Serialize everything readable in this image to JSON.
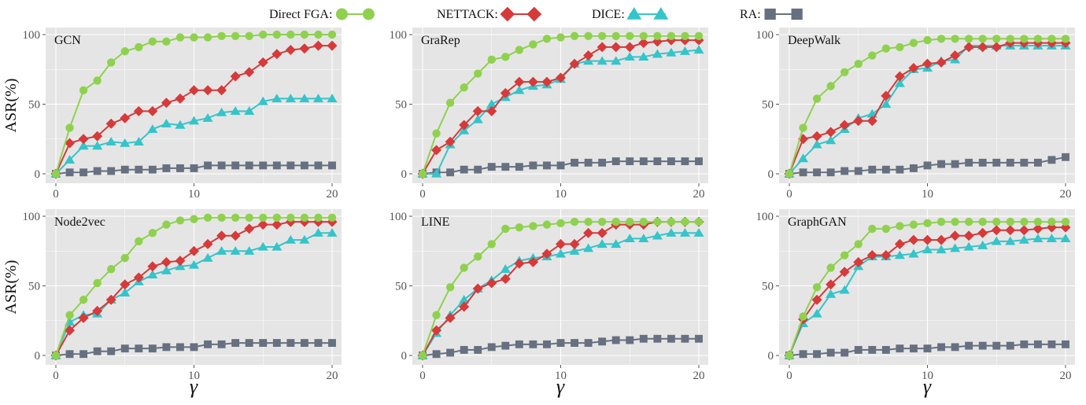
{
  "legend": {
    "position": "top",
    "items": [
      {
        "label": "Direct FGA:",
        "series": "Direct FGA"
      },
      {
        "label": "NETTACK:",
        "series": "NETTACK"
      },
      {
        "label": "DICE:",
        "series": "DICE"
      },
      {
        "label": "RA:",
        "series": "RA"
      }
    ]
  },
  "styles": {
    "panel_bg": "#e5e5e5",
    "grid": "#ffffff",
    "series": {
      "Direct FGA": {
        "color": "#8fd14f",
        "marker": "circle"
      },
      "NETTACK": {
        "color": "#d63a3a",
        "marker": "diamond"
      },
      "DICE": {
        "color": "#35c4c9",
        "marker": "triangle"
      },
      "RA": {
        "color": "#667080",
        "marker": "square"
      }
    }
  },
  "chart_data": [
    {
      "type": "line",
      "title": "GCN",
      "xlabel": "",
      "ylabel": "ASR(%)",
      "xlim": [
        0,
        20
      ],
      "ylim": [
        0,
        100
      ],
      "xticks": [
        0,
        10,
        20
      ],
      "yticks": [
        0,
        50,
        100
      ],
      "grid": true,
      "x": [
        0,
        1,
        2,
        3,
        4,
        5,
        6,
        7,
        8,
        9,
        10,
        11,
        12,
        13,
        14,
        15,
        16,
        17,
        18,
        19,
        20
      ],
      "series": [
        {
          "name": "Direct FGA",
          "values": [
            0,
            33,
            60,
            67,
            80,
            88,
            91,
            95,
            95,
            98,
            98,
            98,
            99,
            99,
            99,
            100,
            100,
            100,
            100,
            100,
            100
          ]
        },
        {
          "name": "NETTACK",
          "values": [
            0,
            22,
            25,
            27,
            36,
            40,
            45,
            45,
            51,
            54,
            60,
            60,
            60,
            70,
            73,
            80,
            86,
            89,
            90,
            92,
            92
          ]
        },
        {
          "name": "DICE",
          "values": [
            0,
            10,
            20,
            20,
            23,
            22,
            23,
            32,
            36,
            35,
            38,
            40,
            44,
            45,
            45,
            52,
            54,
            54,
            54,
            54,
            54
          ]
        },
        {
          "name": "RA",
          "values": [
            0,
            1,
            1,
            2,
            2,
            3,
            3,
            3,
            4,
            4,
            4,
            6,
            6,
            6,
            6,
            6,
            6,
            6,
            6,
            6,
            6
          ]
        }
      ]
    },
    {
      "type": "line",
      "title": "GraRep",
      "xlabel": "",
      "ylabel": "",
      "xlim": [
        0,
        20
      ],
      "ylim": [
        0,
        100
      ],
      "xticks": [
        0,
        10,
        20
      ],
      "yticks": [
        0,
        50,
        100
      ],
      "grid": true,
      "x": [
        0,
        1,
        2,
        3,
        4,
        5,
        6,
        7,
        8,
        9,
        10,
        11,
        12,
        13,
        14,
        15,
        16,
        17,
        18,
        19,
        20
      ],
      "series": [
        {
          "name": "Direct FGA",
          "values": [
            0,
            29,
            51,
            62,
            72,
            82,
            84,
            89,
            93,
            97,
            98,
            99,
            99,
            99,
            99,
            99,
            99,
            99,
            99,
            99,
            99
          ]
        },
        {
          "name": "NETTACK",
          "values": [
            0,
            17,
            23,
            35,
            45,
            45,
            58,
            66,
            66,
            66,
            69,
            79,
            85,
            91,
            91,
            91,
            94,
            95,
            96,
            96,
            96
          ]
        },
        {
          "name": "DICE",
          "values": [
            0,
            0,
            21,
            31,
            39,
            50,
            55,
            60,
            63,
            64,
            68,
            79,
            81,
            81,
            81,
            84,
            84,
            86,
            87,
            88,
            89
          ]
        },
        {
          "name": "RA",
          "values": [
            0,
            1,
            1,
            3,
            3,
            5,
            5,
            5,
            6,
            6,
            6,
            8,
            8,
            8,
            9,
            9,
            9,
            9,
            9,
            9,
            9
          ]
        }
      ]
    },
    {
      "type": "line",
      "title": "DeepWalk",
      "xlabel": "",
      "ylabel": "",
      "xlim": [
        0,
        20
      ],
      "ylim": [
        0,
        100
      ],
      "xticks": [
        0,
        10,
        20
      ],
      "yticks": [
        0,
        50,
        100
      ],
      "grid": true,
      "x": [
        0,
        1,
        2,
        3,
        4,
        5,
        6,
        7,
        8,
        9,
        10,
        11,
        12,
        13,
        14,
        15,
        16,
        17,
        18,
        19,
        20
      ],
      "series": [
        {
          "name": "Direct FGA",
          "values": [
            0,
            33,
            54,
            63,
            73,
            79,
            85,
            90,
            91,
            94,
            96,
            97,
            97,
            97,
            97,
            97,
            97,
            97,
            97,
            97,
            97
          ]
        },
        {
          "name": "NETTACK",
          "values": [
            0,
            25,
            27,
            30,
            35,
            38,
            38,
            56,
            70,
            76,
            79,
            80,
            85,
            91,
            91,
            91,
            94,
            94,
            94,
            94,
            94
          ]
        },
        {
          "name": "DICE",
          "values": [
            0,
            11,
            21,
            24,
            32,
            40,
            43,
            50,
            65,
            75,
            76,
            81,
            82,
            92,
            92,
            92,
            92,
            92,
            92,
            92,
            92
          ]
        },
        {
          "name": "RA",
          "values": [
            0,
            1,
            1,
            1,
            2,
            2,
            3,
            3,
            3,
            4,
            6,
            7,
            7,
            8,
            8,
            8,
            8,
            8,
            8,
            10,
            12
          ]
        }
      ]
    },
    {
      "type": "line",
      "title": "Node2vec",
      "xlabel": "γ",
      "ylabel": "ASR(%)",
      "xlim": [
        0,
        20
      ],
      "ylim": [
        0,
        100
      ],
      "xticks": [
        0,
        10,
        20
      ],
      "yticks": [
        0,
        50,
        100
      ],
      "grid": true,
      "x": [
        0,
        1,
        2,
        3,
        4,
        5,
        6,
        7,
        8,
        9,
        10,
        11,
        12,
        13,
        14,
        15,
        16,
        17,
        18,
        19,
        20
      ],
      "series": [
        {
          "name": "Direct FGA",
          "values": [
            0,
            29,
            40,
            52,
            62,
            70,
            82,
            88,
            94,
            97,
            98,
            99,
            99,
            99,
            99,
            99,
            99,
            99,
            99,
            99,
            99
          ]
        },
        {
          "name": "NETTACK",
          "values": [
            0,
            18,
            27,
            32,
            40,
            51,
            56,
            64,
            67,
            68,
            75,
            80,
            86,
            86,
            91,
            94,
            94,
            96,
            96,
            96,
            96
          ]
        },
        {
          "name": "DICE",
          "values": [
            0,
            24,
            29,
            30,
            40,
            45,
            53,
            58,
            61,
            64,
            65,
            70,
            75,
            75,
            75,
            78,
            78,
            83,
            83,
            88,
            88
          ]
        },
        {
          "name": "RA",
          "values": [
            0,
            1,
            1,
            3,
            3,
            5,
            5,
            5,
            6,
            6,
            6,
            8,
            8,
            9,
            9,
            9,
            9,
            9,
            9,
            9,
            9
          ]
        }
      ]
    },
    {
      "type": "line",
      "title": "LINE",
      "xlabel": "γ",
      "ylabel": "",
      "xlim": [
        0,
        20
      ],
      "ylim": [
        0,
        100
      ],
      "xticks": [
        0,
        10,
        20
      ],
      "yticks": [
        0,
        50,
        100
      ],
      "grid": true,
      "x": [
        0,
        1,
        2,
        3,
        4,
        5,
        6,
        7,
        8,
        9,
        10,
        11,
        12,
        13,
        14,
        15,
        16,
        17,
        18,
        19,
        20
      ],
      "series": [
        {
          "name": "Direct FGA",
          "values": [
            0,
            29,
            49,
            63,
            71,
            80,
            91,
            92,
            93,
            94,
            95,
            96,
            96,
            96,
            96,
            96,
            96,
            96,
            96,
            96,
            96
          ]
        },
        {
          "name": "NETTACK",
          "values": [
            0,
            18,
            27,
            35,
            48,
            52,
            55,
            66,
            67,
            73,
            80,
            80,
            88,
            88,
            94,
            94,
            94,
            96,
            96,
            96,
            96
          ]
        },
        {
          "name": "DICE",
          "values": [
            0,
            16,
            29,
            40,
            48,
            54,
            62,
            68,
            70,
            71,
            73,
            75,
            77,
            80,
            80,
            84,
            84,
            86,
            88,
            88,
            88
          ]
        },
        {
          "name": "RA",
          "values": [
            0,
            1,
            2,
            4,
            4,
            6,
            7,
            8,
            8,
            8,
            9,
            9,
            9,
            10,
            11,
            11,
            12,
            12,
            12,
            12,
            12
          ]
        }
      ]
    },
    {
      "type": "line",
      "title": "GraphGAN",
      "xlabel": "γ",
      "ylabel": "",
      "xlim": [
        0,
        20
      ],
      "ylim": [
        0,
        100
      ],
      "xticks": [
        0,
        10,
        20
      ],
      "yticks": [
        0,
        50,
        100
      ],
      "grid": true,
      "x": [
        0,
        1,
        2,
        3,
        4,
        5,
        6,
        7,
        8,
        9,
        10,
        11,
        12,
        13,
        14,
        15,
        16,
        17,
        18,
        19,
        20
      ],
      "series": [
        {
          "name": "Direct FGA",
          "values": [
            0,
            28,
            49,
            63,
            72,
            80,
            91,
            91,
            93,
            94,
            95,
            96,
            96,
            96,
            96,
            96,
            96,
            96,
            96,
            96,
            96
          ]
        },
        {
          "name": "NETTACK",
          "values": [
            0,
            26,
            40,
            51,
            60,
            67,
            72,
            72,
            80,
            83,
            83,
            83,
            86,
            86,
            88,
            90,
            90,
            90,
            91,
            92,
            92
          ]
        },
        {
          "name": "DICE",
          "values": [
            0,
            23,
            30,
            44,
            47,
            64,
            71,
            71,
            72,
            73,
            76,
            76,
            77,
            78,
            79,
            82,
            82,
            83,
            84,
            84,
            84
          ]
        },
        {
          "name": "RA",
          "values": [
            0,
            1,
            1,
            2,
            2,
            4,
            4,
            4,
            5,
            5,
            5,
            6,
            6,
            7,
            7,
            7,
            7,
            8,
            8,
            8,
            8
          ]
        }
      ]
    }
  ]
}
